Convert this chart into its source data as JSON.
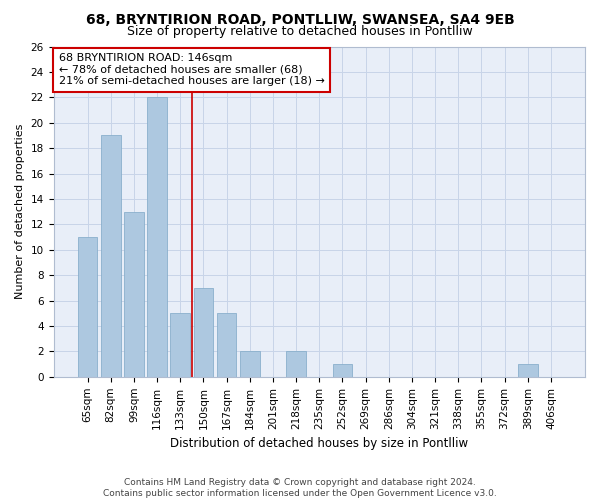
{
  "title1": "68, BRYNTIRION ROAD, PONTLLIW, SWANSEA, SA4 9EB",
  "title2": "Size of property relative to detached houses in Pontlliw",
  "xlabel": "Distribution of detached houses by size in Pontlliw",
  "ylabel": "Number of detached properties",
  "categories": [
    "65sqm",
    "82sqm",
    "99sqm",
    "116sqm",
    "133sqm",
    "150sqm",
    "167sqm",
    "184sqm",
    "201sqm",
    "218sqm",
    "235sqm",
    "252sqm",
    "269sqm",
    "286sqm",
    "304sqm",
    "321sqm",
    "338sqm",
    "355sqm",
    "372sqm",
    "389sqm",
    "406sqm"
  ],
  "values": [
    11,
    19,
    13,
    22,
    5,
    7,
    5,
    2,
    0,
    2,
    0,
    1,
    0,
    0,
    0,
    0,
    0,
    0,
    0,
    1,
    0
  ],
  "bar_color": "#adc8e0",
  "bar_edge_color": "#8ab0cc",
  "vline_x": 4.5,
  "vline_color": "#cc0000",
  "annotation_text": "68 BRYNTIRION ROAD: 146sqm\n← 78% of detached houses are smaller (68)\n21% of semi-detached houses are larger (18) →",
  "annotation_box_color": "#ffffff",
  "annotation_box_edge_color": "#cc0000",
  "ylim": [
    0,
    26
  ],
  "yticks": [
    0,
    2,
    4,
    6,
    8,
    10,
    12,
    14,
    16,
    18,
    20,
    22,
    24,
    26
  ],
  "grid_color": "#c8d4e8",
  "background_color": "#e8eef8",
  "footer_text": "Contains HM Land Registry data © Crown copyright and database right 2024.\nContains public sector information licensed under the Open Government Licence v3.0.",
  "title1_fontsize": 10,
  "title2_fontsize": 9,
  "xlabel_fontsize": 8.5,
  "ylabel_fontsize": 8,
  "tick_fontsize": 7.5,
  "annotation_fontsize": 8,
  "footer_fontsize": 6.5
}
